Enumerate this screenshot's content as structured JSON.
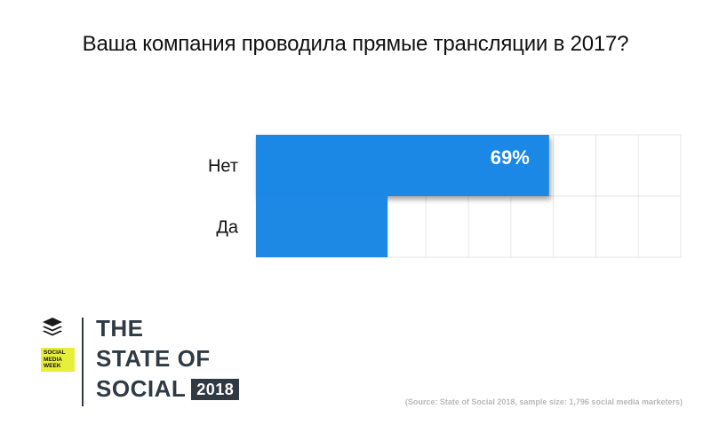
{
  "chart_data": {
    "type": "bar",
    "orientation": "horizontal",
    "title": "Ваша компания проводила прямые трансляции в 2017?",
    "categories": [
      "Нет",
      "Да"
    ],
    "values": [
      69,
      31
    ],
    "data_labels": [
      "69%",
      ""
    ],
    "xlim": [
      0,
      100
    ],
    "grid": true,
    "bar_color": "#1e88e5",
    "grid_color": "#e6e6e6"
  },
  "branding": {
    "smw_lines": [
      "SOCIAL",
      "MEDIA",
      "WEEK"
    ],
    "line1": "THE",
    "line2": "STATE OF",
    "line3": "SOCIAL",
    "year": "2018",
    "badge_color": "#e8ef3a",
    "text_color": "#2f3a44"
  },
  "source": "(Source: State of Social 2018, sample size: 1,796 social media marketers)"
}
